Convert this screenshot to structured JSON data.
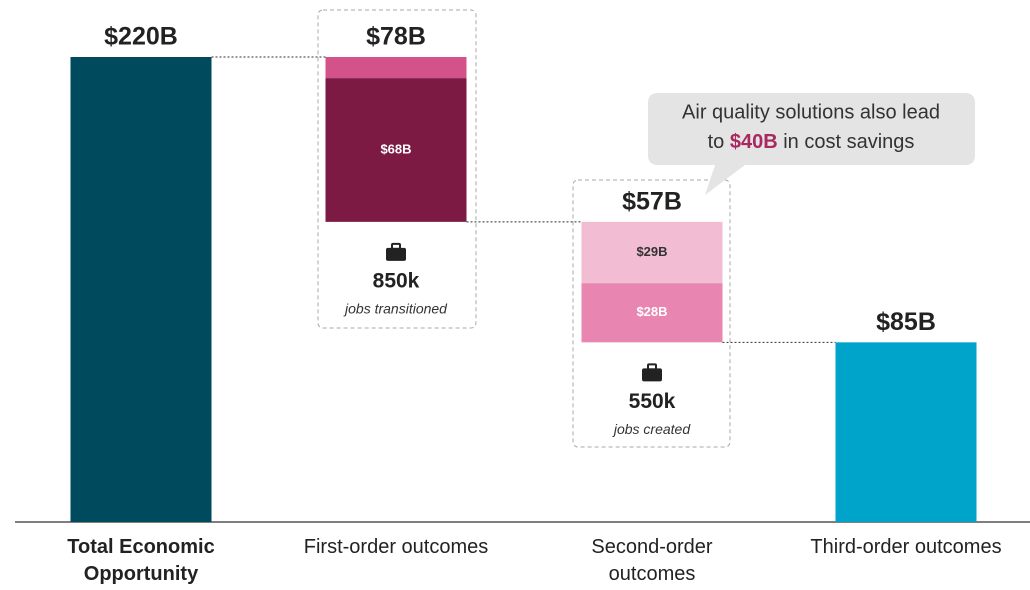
{
  "chart_data": {
    "type": "waterfall",
    "categories": [
      "Total Economic Opportunity",
      "First-order outcomes",
      "Second-order outcomes",
      "Third-order outcomes"
    ],
    "category_bold": [
      true,
      false,
      false,
      false
    ],
    "measure": [
      "total",
      "decrease",
      "decrease",
      "total"
    ],
    "values": [
      220,
      78,
      57,
      85
    ],
    "value_labels": [
      "$220B",
      "$78B",
      "$57B",
      "$85B"
    ],
    "colors": [
      "#004a5e",
      "#7d1a43",
      "#e886b1",
      "#00a3c9"
    ],
    "parts": [
      [],
      [
        {
          "value": 10,
          "color": "#d4528a"
        },
        {
          "value": 68,
          "label": "$68B",
          "color": "#7d1a43",
          "text_color": "#ffffff"
        }
      ],
      [
        {
          "value": 29,
          "label": "$29B",
          "color": "#f2bcd3",
          "text_color": "#333333"
        },
        {
          "value": 28,
          "label": "$28B",
          "color": "#e886b1",
          "text_color": "#ffffff"
        }
      ],
      []
    ],
    "jobs": [
      null,
      {
        "value": "850k",
        "caption": "jobs transitioned"
      },
      {
        "value": "550k",
        "caption": "jobs created"
      },
      null
    ],
    "annotation": {
      "line1": "Air quality solutions also lead",
      "line2_before": "to ",
      "highlight": "$40B",
      "line2_after": " in cost savings"
    },
    "ylim": [
      0,
      220
    ]
  }
}
